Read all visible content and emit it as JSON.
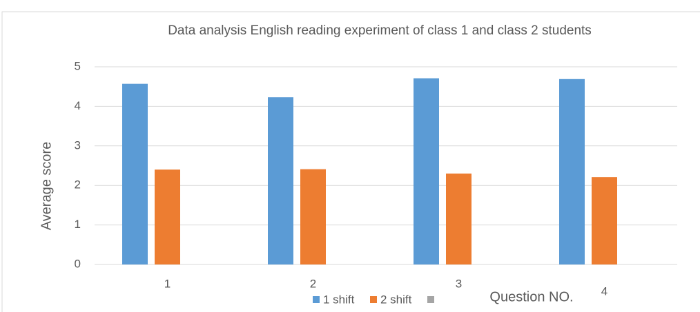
{
  "chart_data": {
    "type": "bar",
    "title": "Data analysis English reading experiment of class 1 and class 2 students",
    "xlabel": "Question NO.",
    "ylabel": "Average score",
    "categories": [
      "1",
      "2",
      "3",
      "4"
    ],
    "series": [
      {
        "name": "1 shift",
        "color": "#5b9bd5",
        "values": [
          4.57,
          4.23,
          4.71,
          4.69
        ]
      },
      {
        "name": "2 shift",
        "color": "#ed7d31",
        "values": [
          2.4,
          2.41,
          2.3,
          2.21
        ]
      },
      {
        "color": "#a5a5a5",
        "values": [
          null,
          null,
          null,
          null
        ]
      }
    ],
    "ylim": [
      0,
      5
    ],
    "yticks": [
      0,
      1,
      2,
      3,
      4,
      5
    ],
    "grid": true
  }
}
